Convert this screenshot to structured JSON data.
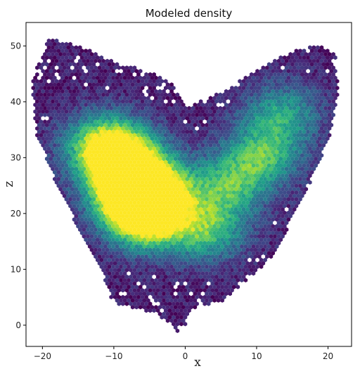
{
  "chart_data": {
    "type": "heatmap",
    "subtype": "hexbin",
    "title": "Modeled density",
    "xlabel": "x",
    "ylabel": "z",
    "xlim": [
      -22.3,
      23.3
    ],
    "ylim": [
      -3.8,
      54.2
    ],
    "xticks": [
      -20,
      -10,
      0,
      10,
      20
    ],
    "xtick_labels": [
      "−20",
      "−10",
      "0",
      "10",
      "20"
    ],
    "yticks": [
      0,
      10,
      20,
      30,
      40,
      50
    ],
    "ytick_labels": [
      "0",
      "10",
      "20",
      "30",
      "40",
      "50"
    ],
    "colormap": "viridis",
    "grid": false,
    "density_hotspots": [
      {
        "x": -6.5,
        "z": 22.5,
        "density": 1.0
      },
      {
        "x": -5.0,
        "z": 24.0,
        "density": 0.95
      },
      {
        "x": -5.5,
        "z": 18.5,
        "density": 0.85
      },
      {
        "x": -8.5,
        "z": 27.0,
        "density": 0.75
      },
      {
        "x": -11.5,
        "z": 32.5,
        "density": 0.75
      },
      {
        "x": -9.0,
        "z": 30.5,
        "density": 0.7
      },
      {
        "x": 3.0,
        "z": 17.0,
        "density": 0.7
      },
      {
        "x": 6.0,
        "z": 25.0,
        "density": 0.65
      },
      {
        "x": 11.0,
        "z": 30.5,
        "density": 0.65
      },
      {
        "x": 13.5,
        "z": 38.0,
        "density": 0.55
      }
    ],
    "outline_points": [
      [
        0,
        39.0
      ],
      [
        -0.8,
        41.5
      ],
      [
        -2,
        43.5
      ],
      [
        -4,
        45
      ],
      [
        -6.5,
        46
      ],
      [
        -9,
        46.5
      ],
      [
        -11.5,
        48
      ],
      [
        -14,
        49.5
      ],
      [
        -16.5,
        50.5
      ],
      [
        -19,
        51.5
      ],
      [
        -21.5,
        44
      ],
      [
        -20.8,
        34
      ],
      [
        -19.8,
        31
      ],
      [
        -18,
        25
      ],
      [
        -16,
        20
      ],
      [
        -14.5,
        16
      ],
      [
        -12.5,
        11.5
      ],
      [
        -11,
        7.5
      ],
      [
        -10.5,
        5
      ],
      [
        -9,
        3.5
      ],
      [
        -6.5,
        3
      ],
      [
        -4,
        2
      ],
      [
        -2.2,
        0.5
      ],
      [
        -1,
        -1.2
      ],
      [
        0,
        0
      ],
      [
        0.5,
        1.5
      ],
      [
        1,
        3
      ],
      [
        3,
        3.5
      ],
      [
        5.5,
        4.5
      ],
      [
        7.5,
        7
      ],
      [
        10.5,
        10
      ],
      [
        12.5,
        13
      ],
      [
        15,
        19
      ],
      [
        17,
        24
      ],
      [
        19,
        30
      ],
      [
        20.5,
        35
      ],
      [
        21.5,
        42
      ],
      [
        21,
        48.5
      ],
      [
        19,
        50
      ],
      [
        16,
        49.5
      ],
      [
        13.5,
        48
      ],
      [
        11,
        46.5
      ],
      [
        8,
        44
      ],
      [
        5.5,
        42
      ],
      [
        3,
        40.5
      ],
      [
        1,
        39.5
      ]
    ]
  }
}
